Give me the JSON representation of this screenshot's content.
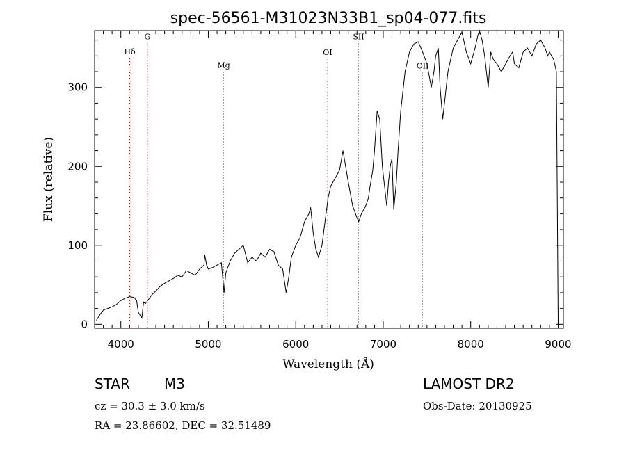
{
  "chart_data": {
    "type": "line",
    "title": "spec-56561-M31023N33B1_sp04-077.fits",
    "xlabel": "Wavelength (Å)",
    "ylabel": "Flux (relative)",
    "xlim": [
      3700,
      9060
    ],
    "ylim": [
      -5,
      372
    ],
    "x_ticks": [
      4000,
      5000,
      6000,
      7000,
      8000,
      9000
    ],
    "y_ticks": [
      0,
      100,
      200,
      300
    ],
    "grid": false,
    "line_color": "#000000",
    "annotation_color": "#cc0000",
    "line_annotations": [
      {
        "label": "Hδ",
        "x": 4102,
        "label_y": 342
      },
      {
        "label": "G",
        "x": 4305,
        "label_y": 361
      },
      {
        "label": "Mg",
        "x": 5175,
        "label_y": 325
      },
      {
        "label": "OI",
        "x": 6364,
        "label_y": 341
      },
      {
        "label": "SII",
        "x": 6718,
        "label_y": 361
      },
      {
        "label": "OII",
        "x": 7450,
        "label_y": 324
      }
    ],
    "series": [
      {
        "x": [
          3720,
          3760,
          3800,
          3850,
          3900,
          3950,
          4000,
          4050,
          4100,
          4150,
          4180,
          4200,
          4240,
          4260,
          4280,
          4320,
          4360,
          4400,
          4450,
          4500,
          4550,
          4600,
          4650,
          4700,
          4750,
          4800,
          4850,
          4900,
          4950,
          4960,
          4980,
          5000,
          5050,
          5100,
          5150,
          5180,
          5200,
          5250,
          5300,
          5350,
          5400,
          5450,
          5500,
          5550,
          5600,
          5650,
          5700,
          5750,
          5800,
          5850,
          5890,
          5920,
          5950,
          6000,
          6050,
          6100,
          6150,
          6170,
          6200,
          6230,
          6260,
          6300,
          6340,
          6370,
          6400,
          6450,
          6500,
          6540,
          6570,
          6600,
          6650,
          6700,
          6720,
          6750,
          6800,
          6830,
          6850,
          6880,
          6900,
          6930,
          6960,
          6990,
          7010,
          7040,
          7060,
          7080,
          7100,
          7120,
          7150,
          7170,
          7200,
          7250,
          7300,
          7350,
          7400,
          7450,
          7500,
          7550,
          7580,
          7600,
          7630,
          7650,
          7680,
          7700,
          7720,
          7740,
          7760,
          7800,
          7850,
          7900,
          7950,
          8000,
          8050,
          8080,
          8100,
          8130,
          8160,
          8180,
          8200,
          8230,
          8260,
          8300,
          8350,
          8400,
          8450,
          8480,
          8500,
          8550,
          8600,
          8650,
          8700,
          8750,
          8800,
          8850,
          8880,
          8900,
          8950,
          8980,
          9000,
          9005,
          9010
        ],
        "y": [
          5,
          12,
          18,
          20,
          22,
          25,
          30,
          33,
          35,
          34,
          30,
          15,
          8,
          28,
          26,
          32,
          38,
          42,
          48,
          52,
          55,
          58,
          62,
          60,
          68,
          65,
          62,
          70,
          75,
          88,
          75,
          70,
          72,
          75,
          78,
          40,
          65,
          80,
          90,
          95,
          100,
          78,
          85,
          80,
          90,
          85,
          95,
          92,
          75,
          70,
          40,
          60,
          85,
          100,
          110,
          130,
          140,
          148,
          115,
          95,
          85,
          100,
          135,
          160,
          175,
          185,
          195,
          220,
          200,
          180,
          150,
          135,
          130,
          140,
          150,
          160,
          175,
          195,
          220,
          270,
          260,
          200,
          180,
          150,
          180,
          200,
          210,
          145,
          180,
          220,
          270,
          320,
          345,
          355,
          358,
          345,
          330,
          300,
          320,
          340,
          350,
          300,
          260,
          280,
          300,
          320,
          330,
          350,
          360,
          370,
          345,
          330,
          350,
          365,
          372,
          360,
          340,
          320,
          300,
          345,
          335,
          330,
          320,
          330,
          340,
          345,
          330,
          325,
          345,
          350,
          340,
          355,
          360,
          350,
          340,
          345,
          335,
          320,
          0,
          -3,
          -3
        ]
      }
    ],
    "info": {
      "object_class": "STAR",
      "subclass": "M3",
      "survey": "LAMOST DR2",
      "velocity": "cz = 30.3 ± 3.0 km/s",
      "obs_date": "Obs-Date: 20130925",
      "coords": "RA =  23.86602, DEC =  32.51489"
    }
  }
}
